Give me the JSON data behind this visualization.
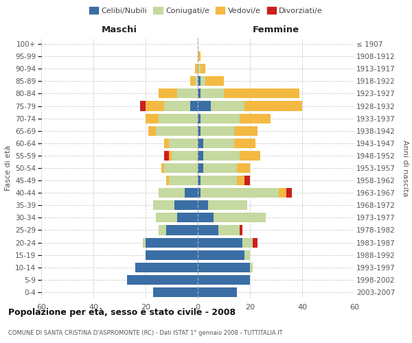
{
  "age_groups": [
    "0-4",
    "5-9",
    "10-14",
    "15-19",
    "20-24",
    "25-29",
    "30-34",
    "35-39",
    "40-44",
    "45-49",
    "50-54",
    "55-59",
    "60-64",
    "65-69",
    "70-74",
    "75-79",
    "80-84",
    "85-89",
    "90-94",
    "95-99",
    "100+"
  ],
  "birth_years": [
    "2003-2007",
    "1998-2002",
    "1993-1997",
    "1988-1992",
    "1983-1987",
    "1978-1982",
    "1973-1977",
    "1968-1972",
    "1963-1967",
    "1958-1962",
    "1953-1957",
    "1948-1952",
    "1943-1947",
    "1938-1942",
    "1933-1937",
    "1928-1932",
    "1923-1927",
    "1918-1922",
    "1913-1917",
    "1908-1912",
    "≤ 1907"
  ],
  "male_celibi": [
    17,
    27,
    24,
    20,
    20,
    12,
    8,
    9,
    5,
    0,
    0,
    0,
    0,
    0,
    0,
    3,
    0,
    0,
    0,
    0,
    0
  ],
  "male_coniugati": [
    0,
    0,
    0,
    0,
    1,
    3,
    8,
    8,
    10,
    11,
    13,
    10,
    11,
    16,
    15,
    10,
    8,
    1,
    0,
    0,
    0
  ],
  "male_vedovi": [
    0,
    0,
    0,
    0,
    0,
    0,
    0,
    0,
    0,
    1,
    1,
    1,
    2,
    3,
    5,
    7,
    7,
    2,
    1,
    0,
    0
  ],
  "male_divorziati": [
    0,
    0,
    0,
    0,
    0,
    0,
    0,
    0,
    0,
    0,
    0,
    2,
    0,
    0,
    0,
    2,
    0,
    0,
    0,
    0,
    0
  ],
  "female_celibi": [
    15,
    20,
    20,
    18,
    17,
    8,
    6,
    4,
    1,
    1,
    2,
    2,
    2,
    1,
    1,
    5,
    1,
    1,
    0,
    0,
    0
  ],
  "female_coniugati": [
    0,
    0,
    1,
    2,
    4,
    8,
    20,
    15,
    30,
    14,
    13,
    14,
    12,
    13,
    15,
    13,
    9,
    2,
    1,
    0,
    0
  ],
  "female_vedovi": [
    0,
    0,
    0,
    0,
    0,
    0,
    0,
    0,
    3,
    3,
    5,
    8,
    8,
    9,
    12,
    22,
    29,
    7,
    2,
    1,
    0
  ],
  "female_divorziati": [
    0,
    0,
    0,
    0,
    2,
    1,
    0,
    0,
    2,
    2,
    0,
    0,
    0,
    0,
    0,
    0,
    0,
    0,
    0,
    0,
    0
  ],
  "colors": {
    "celibi": "#3a6ea5",
    "coniugati": "#c5d9a0",
    "vedovi": "#f4b942",
    "divorziati": "#cc1f1f"
  },
  "title_main": "Popolazione per età, sesso e stato civile - 2008",
  "title_sub": "COMUNE DI SANTA CRISTINA D'ASPROMONTE (RC) - Dati ISTAT 1° gennaio 2008 - TUTTITALIA.IT",
  "xlabel_left": "Maschi",
  "xlabel_right": "Femmine",
  "ylabel_left": "Fasce di età",
  "ylabel_right": "Anni di nascita",
  "xlim": 60,
  "legend_labels": [
    "Celibi/Nubili",
    "Coniugati/e",
    "Vedovi/e",
    "Divorziati/e"
  ],
  "background_color": "#ffffff",
  "grid_color": "#cccccc"
}
